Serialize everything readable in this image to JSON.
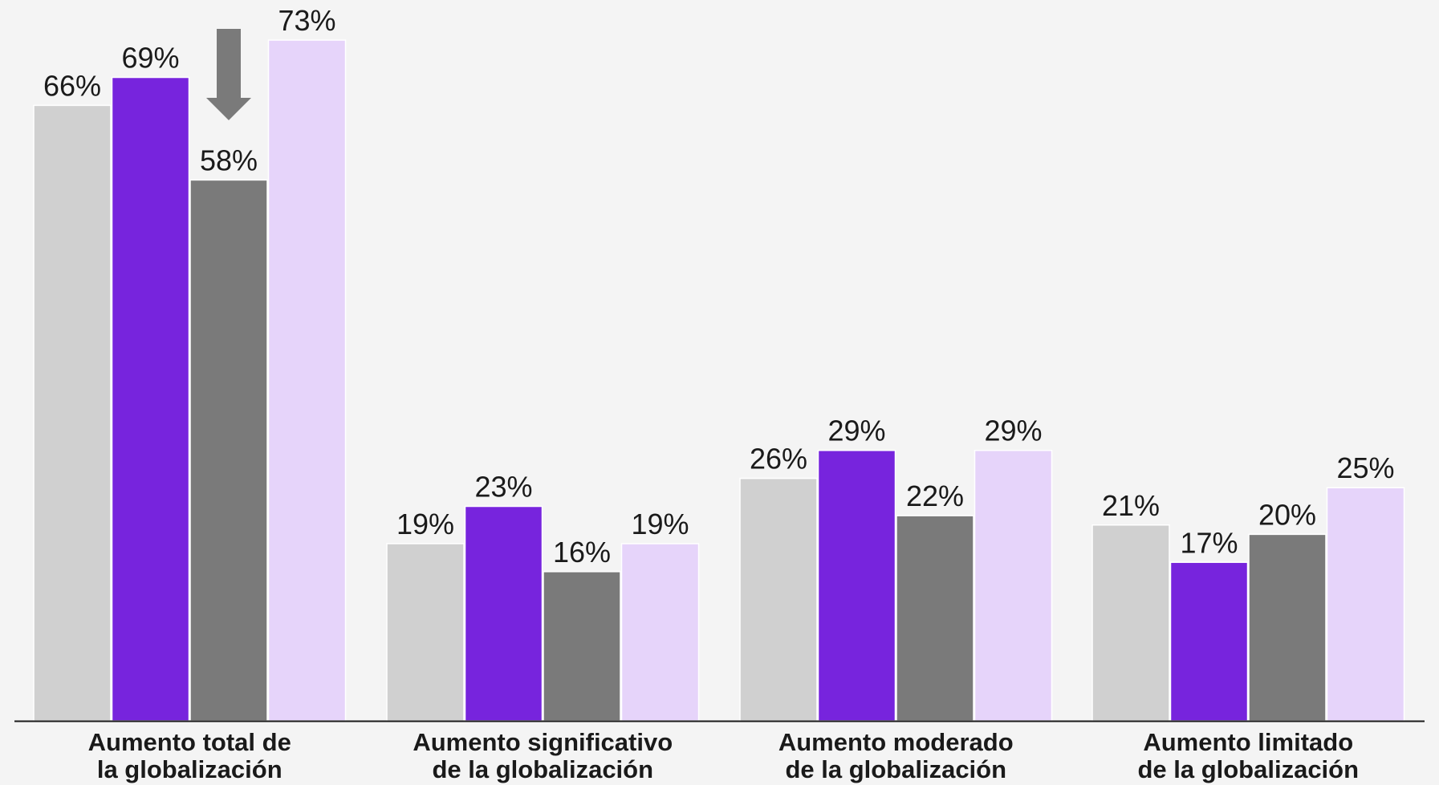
{
  "chart_data": {
    "type": "bar",
    "categories": [
      [
        "Aumento total de",
        "la globalización"
      ],
      [
        "Aumento significativo",
        "de la globalización"
      ],
      [
        "Aumento moderado",
        "de la globalización"
      ],
      [
        "Aumento limitado",
        "de la globalización"
      ]
    ],
    "series": [
      {
        "color": "#d0d0d0",
        "values": [
          66,
          19,
          26,
          21
        ],
        "labels": [
          "66%",
          "19%",
          "26%",
          "21%"
        ]
      },
      {
        "color": "#7724dd",
        "values": [
          69,
          23,
          29,
          17
        ],
        "labels": [
          "69%",
          "23%",
          "29%",
          "17%"
        ]
      },
      {
        "color": "#7a7a7a",
        "values": [
          58,
          16,
          22,
          20
        ],
        "labels": [
          "58%",
          "16%",
          "22%",
          "20%"
        ]
      },
      {
        "color": "#e6d4fa",
        "values": [
          73,
          19,
          29,
          25
        ],
        "labels": [
          "73%",
          "19%",
          "29%",
          "25%"
        ]
      }
    ],
    "ylim": [
      0,
      73
    ],
    "grid": false,
    "annotations": [
      {
        "type": "down-arrow-icon",
        "category_index": 0,
        "series_index": 2,
        "color": "#7a7a7a"
      }
    ]
  }
}
